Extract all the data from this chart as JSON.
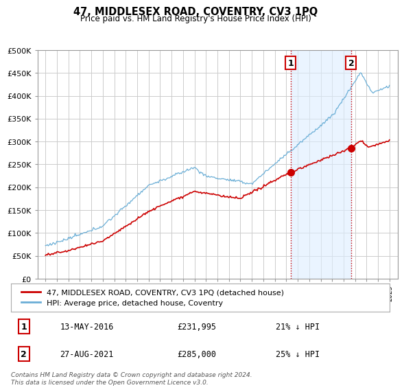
{
  "title": "47, MIDDLESEX ROAD, COVENTRY, CV3 1PQ",
  "subtitle": "Price paid vs. HM Land Registry's House Price Index (HPI)",
  "hpi_label": "HPI: Average price, detached house, Coventry",
  "property_label": "47, MIDDLESEX ROAD, COVENTRY, CV3 1PQ (detached house)",
  "hpi_color": "#6aaed6",
  "hpi_fill_color": "#ddeeff",
  "property_color": "#cc0000",
  "marker1_date": "13-MAY-2016",
  "marker1_price": 231995,
  "marker1_year": 2016.37,
  "marker1_hpi_pct": "21% ↓ HPI",
  "marker2_date": "27-AUG-2021",
  "marker2_price": 285000,
  "marker2_year": 2021.66,
  "marker2_hpi_pct": "25% ↓ HPI",
  "ylim": [
    0,
    500000
  ],
  "yticks": [
    0,
    50000,
    100000,
    150000,
    200000,
    250000,
    300000,
    350000,
    400000,
    450000,
    500000
  ],
  "x_start_year": 1995,
  "x_end_year": 2025,
  "footnote": "Contains HM Land Registry data © Crown copyright and database right 2024.\nThis data is licensed under the Open Government Licence v3.0.",
  "background_color": "#ffffff",
  "grid_color": "#cccccc"
}
